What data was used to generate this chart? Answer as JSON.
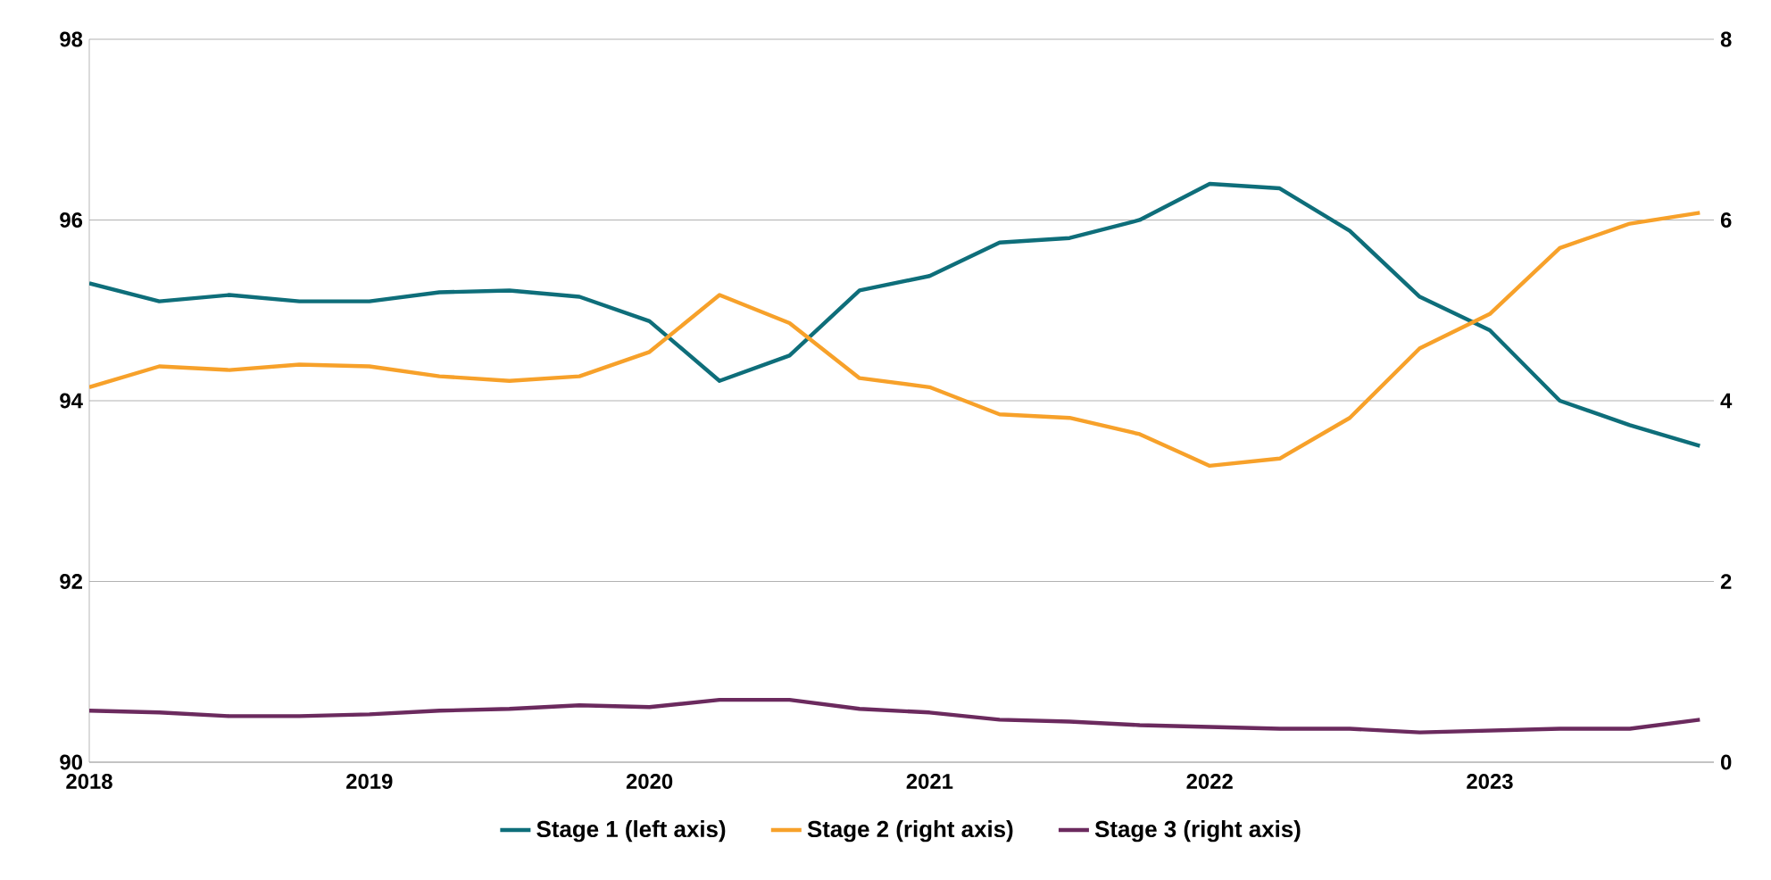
{
  "chart_data": {
    "type": "line",
    "x": [
      2018.0,
      2018.25,
      2018.5,
      2018.75,
      2019.0,
      2019.25,
      2019.5,
      2019.75,
      2020.0,
      2020.25,
      2020.5,
      2020.75,
      2021.0,
      2021.25,
      2021.5,
      2021.75,
      2022.0,
      2022.25,
      2022.5,
      2022.75,
      2023.0,
      2023.25,
      2023.5,
      2023.75
    ],
    "series": [
      {
        "name": "Stage 1 (left axis)",
        "color": "#0e6e7a",
        "values": [
          95.3,
          95.1,
          95.17,
          95.1,
          95.1,
          95.2,
          95.22,
          95.15,
          94.88,
          94.22,
          94.5,
          95.22,
          95.38,
          95.75,
          95.8,
          96.0,
          96.4,
          96.35,
          95.88,
          95.15,
          94.78,
          94.0,
          93.73,
          93.5
        ]
      },
      {
        "name": "Stage 2 (right axis)",
        "color": "#f7a12a",
        "axis": "y2",
        "values": [
          4.15,
          4.38,
          4.34,
          4.4,
          4.38,
          4.27,
          4.22,
          4.27,
          4.54,
          5.17,
          4.86,
          4.25,
          4.15,
          3.85,
          3.81,
          3.63,
          3.28,
          3.36,
          3.81,
          4.58,
          4.96,
          5.69,
          5.96,
          6.08
        ]
      },
      {
        "name": "Stage 3 (right axis)",
        "color": "#6b2a5e",
        "axis": "y2",
        "values": [
          0.57,
          0.55,
          0.51,
          0.51,
          0.53,
          0.57,
          0.59,
          0.63,
          0.61,
          0.69,
          0.69,
          0.59,
          0.55,
          0.47,
          0.45,
          0.41,
          0.39,
          0.37,
          0.37,
          0.33,
          0.35,
          0.37,
          0.37,
          0.47
        ]
      }
    ],
    "xlim": [
      2018,
      2023.8
    ],
    "xticks": [
      2018,
      2019,
      2020,
      2021,
      2022,
      2023
    ],
    "ylim": [
      90,
      98
    ],
    "yticks": [
      90,
      92,
      94,
      96,
      98
    ],
    "y2lim": [
      0,
      8
    ],
    "y2ticks": [
      0,
      2,
      4,
      6,
      8
    ],
    "grid": "y",
    "legend": "bottom"
  }
}
